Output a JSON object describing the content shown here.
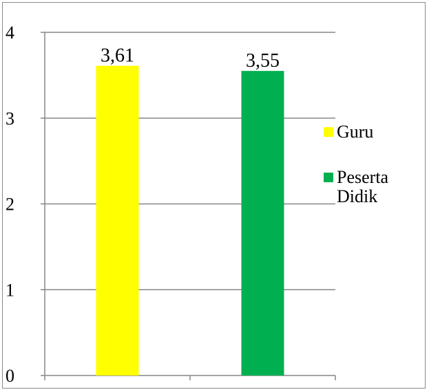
{
  "chart_data": {
    "type": "bar",
    "categories": [
      "Guru",
      "Peserta Didik"
    ],
    "series": [
      {
        "name": "Guru",
        "values": [
          3.61,
          null
        ],
        "color": "#ffff00"
      },
      {
        "name": "Peserta Didik",
        "values": [
          null,
          3.55
        ],
        "color": "#00b050"
      }
    ],
    "data_labels": [
      "3,61",
      "3,55"
    ],
    "y_ticks": [
      "0",
      "1",
      "2",
      "3",
      "4"
    ],
    "ylim": [
      0,
      4
    ],
    "grid": true,
    "legend_position": "right",
    "title": "",
    "xlabel": "",
    "ylabel": ""
  },
  "legend": {
    "items": [
      {
        "label": "Guru",
        "color": "#ffff00"
      },
      {
        "label": "Peserta Didik",
        "color": "#00b050"
      }
    ]
  }
}
